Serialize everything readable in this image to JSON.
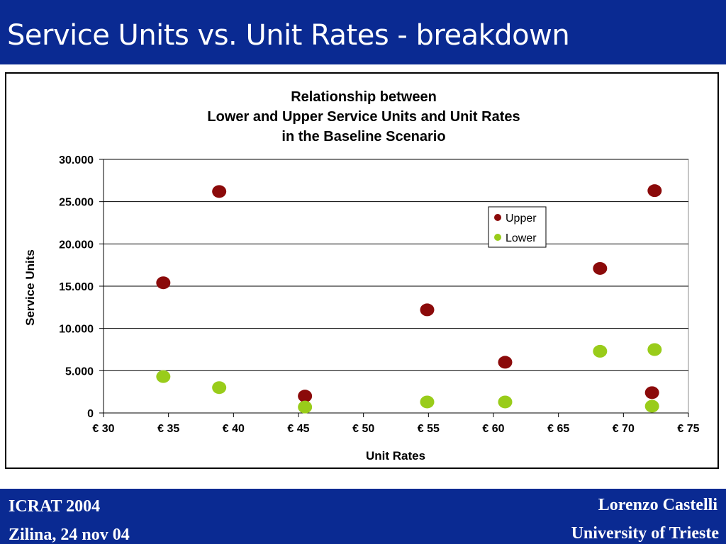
{
  "slide": {
    "title": "Service Units vs. Unit Rates - breakdown"
  },
  "footer": {
    "left_line1": "ICRAT 2004",
    "left_line2": "Zilina, 24 nov 04",
    "right_line1": "Lorenzo Castelli",
    "right_line2": "University of Trieste"
  },
  "colors": {
    "header_bg": "#0a2a92",
    "upper": "#8b0a0a",
    "lower": "#99cc1a"
  },
  "chart_data": {
    "type": "scatter",
    "title_lines": [
      "Relationship between",
      "Lower and Upper Service Units and Unit Rates",
      "in the Baseline Scenario"
    ],
    "xlabel": "Unit Rates",
    "ylabel": "Service Units",
    "xlim": [
      30,
      75
    ],
    "ylim": [
      0,
      30000
    ],
    "x_ticks": [
      30,
      35,
      40,
      45,
      50,
      55,
      60,
      65,
      70,
      75
    ],
    "x_tick_labels": [
      "€ 30",
      "€ 35",
      "€ 40",
      "€ 45",
      "€ 50",
      "€ 55",
      "€ 60",
      "€ 65",
      "€ 70",
      "€ 75"
    ],
    "y_ticks": [
      0,
      5000,
      10000,
      15000,
      20000,
      25000,
      30000
    ],
    "y_tick_labels": [
      "0",
      "5.000",
      "10.000",
      "15.000",
      "20.000",
      "25.000",
      "30.000"
    ],
    "grid": "horizontal",
    "legend_position": "top-right",
    "series": [
      {
        "name": "Upper",
        "color": "#8b0a0a",
        "points": [
          [
            34.6,
            15400
          ],
          [
            38.9,
            26200
          ],
          [
            45.5,
            2000
          ],
          [
            54.9,
            12200
          ],
          [
            60.9,
            6000
          ],
          [
            68.2,
            17100
          ],
          [
            72.2,
            2400
          ],
          [
            72.4,
            26300
          ]
        ]
      },
      {
        "name": "Lower",
        "color": "#99cc1a",
        "points": [
          [
            34.6,
            4300
          ],
          [
            38.9,
            3000
          ],
          [
            45.5,
            700
          ],
          [
            54.9,
            1300
          ],
          [
            60.9,
            1300
          ],
          [
            68.2,
            7300
          ],
          [
            72.2,
            800
          ],
          [
            72.4,
            7500
          ]
        ]
      }
    ]
  }
}
